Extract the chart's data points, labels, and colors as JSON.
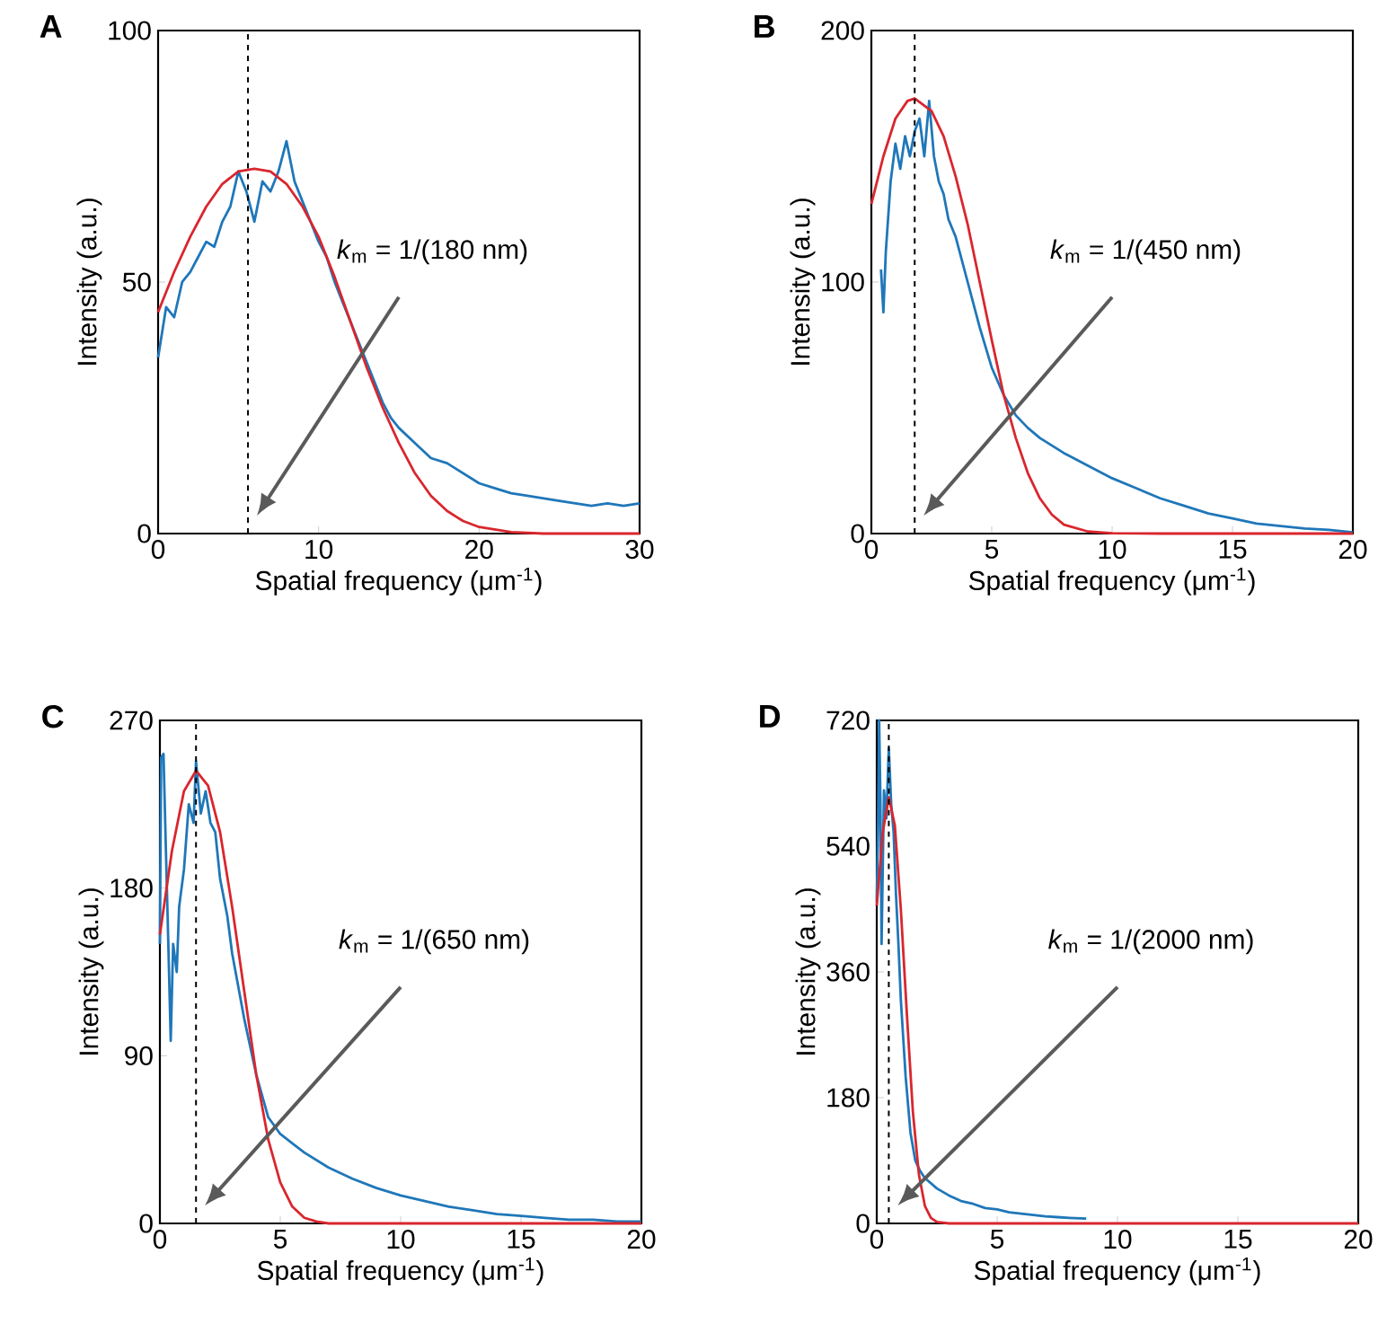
{
  "chart_data": [
    {
      "type": "line",
      "title": "A",
      "xlabel": "Spatial frequency (μm$^{-1}$)",
      "ylabel": "Intensity (a.u.)",
      "xlim": [
        0,
        30
      ],
      "ylim": [
        0,
        100
      ],
      "xticks": [
        0,
        10,
        20,
        30
      ],
      "yticks": [
        0,
        50,
        100
      ],
      "series": [
        {
          "color": "#1f77b9",
          "x": [
            0,
            0.5,
            1,
            1.5,
            2,
            2.5,
            3,
            3.5,
            4,
            4.5,
            5,
            5.5,
            6,
            6.5,
            7,
            7.5,
            8,
            8.5,
            9,
            9.5,
            10,
            10.5,
            11,
            11.5,
            12,
            12.5,
            13,
            13.5,
            14,
            14.5,
            15,
            16,
            17,
            18,
            19,
            20,
            21,
            22,
            23,
            24,
            25,
            26,
            27,
            28,
            29,
            30
          ],
          "values": [
            35,
            45,
            43,
            50,
            52,
            55,
            58,
            57,
            62,
            65,
            72,
            68,
            62,
            70,
            68,
            72,
            78,
            70,
            66,
            62,
            58,
            55,
            50,
            46,
            42,
            38,
            34,
            30,
            26,
            23,
            21,
            18,
            15,
            14,
            12,
            10,
            9,
            8,
            7.5,
            7,
            6.5,
            6,
            5.5,
            6,
            5.5,
            6
          ]
        },
        {
          "color": "#d9262e",
          "x": [
            0,
            1,
            2,
            3,
            4,
            5,
            6,
            7,
            8,
            9,
            10,
            11,
            12,
            13,
            14,
            15,
            16,
            17,
            18,
            19,
            20,
            22,
            24,
            30
          ],
          "values": [
            44,
            52,
            59,
            65,
            69.5,
            72,
            72.5,
            72,
            69.5,
            65,
            59,
            51,
            42,
            33,
            25,
            18,
            12,
            7.5,
            4.5,
            2.5,
            1.3,
            0.3,
            0,
            0
          ]
        }
      ],
      "ref_lines": [
        {
          "axis": "x",
          "value": 5.6,
          "color": "#000000",
          "line_style": "dashed"
        }
      ],
      "annotations": [
        "*k*$_{m}$ = 1/(180 nm)"
      ]
    },
    {
      "type": "line",
      "title": "B",
      "xlabel": "Spatial frequency (μm$^{-1}$)",
      "ylabel": "Intensity (a.u.)",
      "xlim": [
        0,
        20
      ],
      "ylim": [
        0,
        200
      ],
      "xticks": [
        0,
        5,
        10,
        15,
        20
      ],
      "yticks": [
        0,
        100,
        200
      ],
      "series": [
        {
          "color": "#1f77b9",
          "x": [
            0.4,
            0.5,
            0.6,
            0.8,
            1.0,
            1.2,
            1.4,
            1.6,
            1.8,
            2.0,
            2.2,
            2.4,
            2.6,
            2.8,
            3.0,
            3.2,
            3.5,
            4.0,
            4.5,
            5.0,
            5.5,
            6,
            6.5,
            7,
            8,
            9,
            10,
            11,
            12,
            13,
            14,
            15,
            16,
            17,
            18,
            19,
            20
          ],
          "values": [
            105,
            88,
            112,
            140,
            155,
            145,
            158,
            150,
            160,
            165,
            150,
            172,
            150,
            140,
            135,
            125,
            118,
            100,
            82,
            66,
            55,
            47,
            42,
            38,
            32,
            27,
            22,
            18,
            14,
            11,
            8,
            6,
            4,
            3,
            2,
            1.5,
            0.5
          ]
        },
        {
          "color": "#d9262e",
          "x": [
            0,
            0.5,
            1,
            1.5,
            1.8,
            2.5,
            3,
            3.5,
            4,
            4.5,
            5,
            5.5,
            6,
            6.5,
            7,
            7.5,
            8,
            9,
            10,
            12,
            20
          ],
          "values": [
            131,
            150,
            165,
            172,
            173,
            168,
            158,
            142,
            123,
            100,
            77,
            55,
            38,
            24,
            14,
            7.5,
            3.5,
            0.8,
            0.1,
            0,
            0
          ]
        }
      ],
      "ref_lines": [
        {
          "axis": "x",
          "value": 1.8,
          "color": "#000000",
          "line_style": "dashed"
        }
      ],
      "annotations": [
        "*k*$_{m}$ = 1/(450 nm)"
      ]
    },
    {
      "type": "line",
      "title": "C",
      "xlabel": "Spatial frequency (μm$^{-1}$)",
      "ylabel": "Intensity (a.u.)",
      "xlim": [
        0,
        20
      ],
      "ylim": [
        0,
        270
      ],
      "xticks": [
        0,
        5,
        10,
        15,
        20
      ],
      "yticks": [
        0,
        90,
        180,
        270
      ],
      "series": [
        {
          "color": "#1f77b9",
          "x": [
            0,
            0.05,
            0.15,
            0.25,
            0.35,
            0.45,
            0.55,
            0.7,
            0.8,
            1.0,
            1.2,
            1.4,
            1.5,
            1.7,
            1.9,
            2.1,
            2.3,
            2.5,
            2.8,
            3.0,
            3.5,
            4.0,
            4.5,
            5.0,
            5.5,
            6,
            7,
            8,
            9,
            10,
            11,
            12,
            13,
            14,
            15,
            16,
            17,
            18,
            19,
            20
          ],
          "values": [
            150,
            250,
            252,
            200,
            150,
            98,
            150,
            135,
            170,
            190,
            225,
            215,
            248,
            220,
            232,
            215,
            210,
            185,
            165,
            145,
            110,
            80,
            57,
            48,
            43,
            38,
            30,
            24,
            19,
            15,
            12,
            9,
            7,
            5,
            4,
            3,
            2,
            2,
            1,
            1
          ]
        },
        {
          "color": "#d9262e",
          "x": [
            0,
            0.5,
            1,
            1.5,
            2,
            2.5,
            3,
            3.5,
            4,
            4.5,
            5,
            5.5,
            6,
            6.5,
            7,
            20
          ],
          "values": [
            155,
            200,
            232,
            243,
            235,
            210,
            170,
            125,
            80,
            45,
            22,
            9,
            3,
            1,
            0,
            0
          ]
        }
      ],
      "ref_lines": [
        {
          "axis": "x",
          "value": 1.5,
          "color": "#000000",
          "line_style": "dashed"
        }
      ],
      "annotations": [
        "*k*$_{m}$ = 1/(650 nm)"
      ]
    },
    {
      "type": "line",
      "title": "D",
      "xlabel": "Spatial frequency (μm$^{-1}$)",
      "ylabel": "Intensity (a.u.)",
      "xlim": [
        0,
        20
      ],
      "ylim": [
        0,
        720
      ],
      "xticks": [
        0,
        5,
        10,
        15,
        20
      ],
      "yticks": [
        0,
        180,
        360,
        540,
        720
      ],
      "series": [
        {
          "color": "#1f77b9",
          "x": [
            0,
            0.05,
            0.1,
            0.15,
            0.2,
            0.3,
            0.4,
            0.5,
            0.6,
            0.7,
            0.8,
            0.9,
            1.0,
            1.2,
            1.4,
            1.6,
            1.8,
            2.0,
            2.5,
            3,
            3.5,
            4,
            4.5,
            5,
            5.5,
            6,
            6.5,
            7,
            7.5,
            8,
            8.7
          ],
          "values": [
            460,
            560,
            720,
            610,
            400,
            620,
            580,
            680,
            600,
            560,
            470,
            400,
            320,
            210,
            130,
            90,
            75,
            65,
            50,
            40,
            32,
            28,
            22,
            20,
            16,
            14,
            12,
            10,
            9,
            8,
            7
          ]
        },
        {
          "color": "#d9262e",
          "x": [
            0,
            0.25,
            0.5,
            0.75,
            1.0,
            1.25,
            1.5,
            1.75,
            2,
            2.25,
            2.5,
            3,
            20
          ],
          "values": [
            455,
            560,
            610,
            570,
            450,
            300,
            160,
            70,
            25,
            8,
            2,
            0,
            0
          ]
        }
      ],
      "ref_lines": [
        {
          "axis": "x",
          "value": 0.5,
          "color": "#000000",
          "line_style": "dashed"
        }
      ],
      "annotations": [
        "*k*$_{m}$ = 1/(2000 nm)"
      ]
    }
  ]
}
